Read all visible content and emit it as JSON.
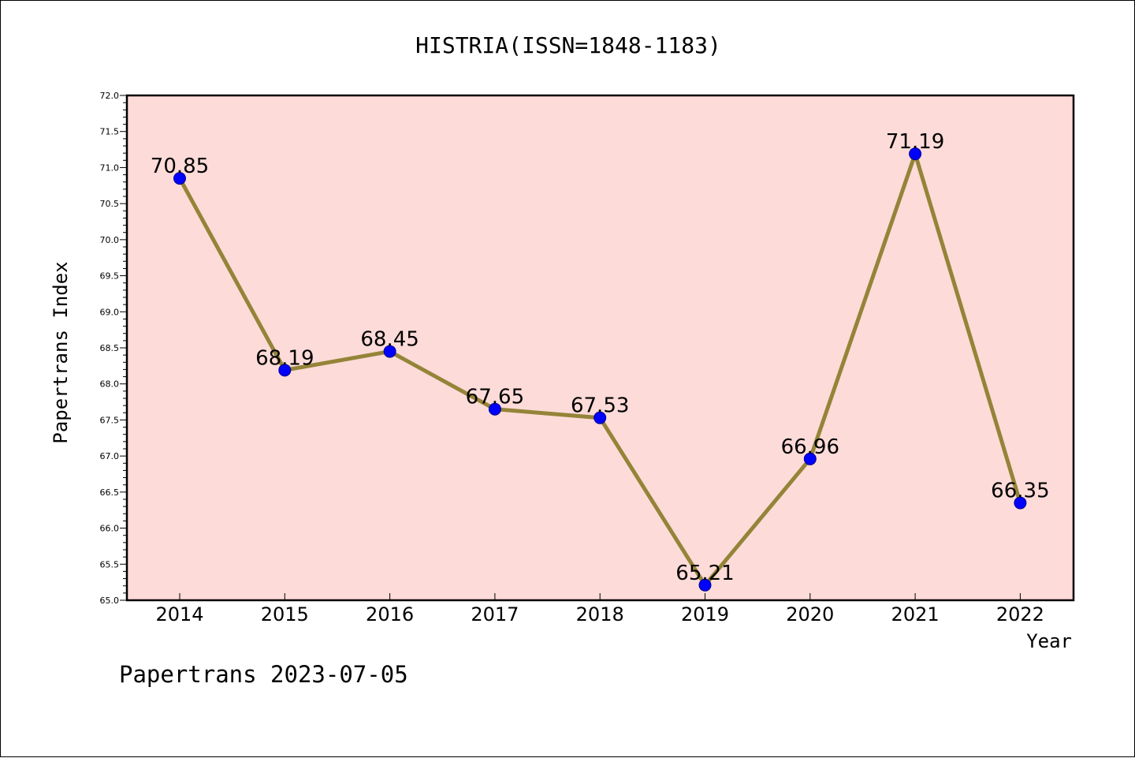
{
  "chart_data": {
    "type": "line",
    "title": "HISTRIA(ISSN=1848-1183)",
    "xlabel": "Year",
    "ylabel": "Papertrans Index",
    "x": [
      "2014",
      "2015",
      "2016",
      "2017",
      "2018",
      "2019",
      "2020",
      "2021",
      "2022"
    ],
    "series": [
      {
        "values": [
          70.85,
          68.19,
          68.45,
          67.65,
          67.53,
          65.21,
          66.96,
          71.19,
          66.35
        ],
        "data_labels": [
          "70.85",
          "68.19",
          "68.45",
          "67.65",
          "67.53",
          "65.21",
          "66.96",
          "71.19",
          "66.35"
        ]
      }
    ],
    "ylim": [
      65.0,
      72.0
    ],
    "yticks": [
      "65.0",
      "65.5",
      "66.0",
      "66.5",
      "67.0",
      "67.5",
      "68.0",
      "68.5",
      "69.0",
      "69.5",
      "70.0",
      "70.5",
      "71.0",
      "71.5",
      "72.0"
    ],
    "grid": false,
    "legend": "none",
    "colors": {
      "plot_background": "#fddbd8",
      "line": "#948438",
      "marker_fill": "#0000ff",
      "marker_edge": "#00008b"
    }
  },
  "footer": {
    "text": "Papertrans 2023-07-05"
  }
}
